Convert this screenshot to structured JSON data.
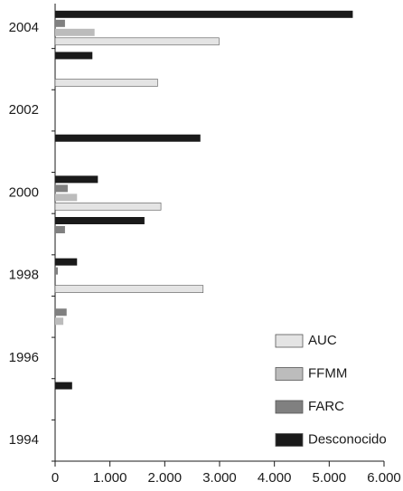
{
  "chart_data": {
    "type": "barh",
    "categories": [
      "1994",
      null,
      "1996",
      null,
      "1998",
      null,
      "2000",
      null,
      "2002",
      null,
      "2004"
    ],
    "series": [
      {
        "name": "AUC",
        "color": "#e4e4e4",
        "values": [
          0,
          0,
          0,
          0,
          2700,
          0,
          1930,
          0,
          0,
          1870,
          2990
        ]
      },
      {
        "name": "FFMM",
        "color": "#bcbcbc",
        "values": [
          0,
          0,
          0,
          150,
          0,
          0,
          400,
          0,
          0,
          0,
          720
        ]
      },
      {
        "name": "FARC",
        "color": "#808080",
        "values": [
          0,
          0,
          0,
          210,
          50,
          180,
          230,
          0,
          0,
          0,
          180
        ]
      },
      {
        "name": "Desconocido",
        "color": "#1a1a1a",
        "values": [
          0,
          310,
          0,
          0,
          400,
          1630,
          780,
          2650,
          0,
          680,
          5430
        ]
      }
    ],
    "xlim": [
      0,
      6000
    ],
    "xticks": [
      0,
      {
        "value": 1000,
        "label": "1.000"
      },
      {
        "value": 2000,
        "label": "2.000"
      },
      {
        "value": 3000,
        "label": "3.000"
      },
      {
        "value": 4000,
        "label": "4.000"
      },
      {
        "value": 5000,
        "label": "5.000"
      },
      {
        "value": 6000,
        "label": "6.000"
      }
    ],
    "legend": "lower right"
  }
}
